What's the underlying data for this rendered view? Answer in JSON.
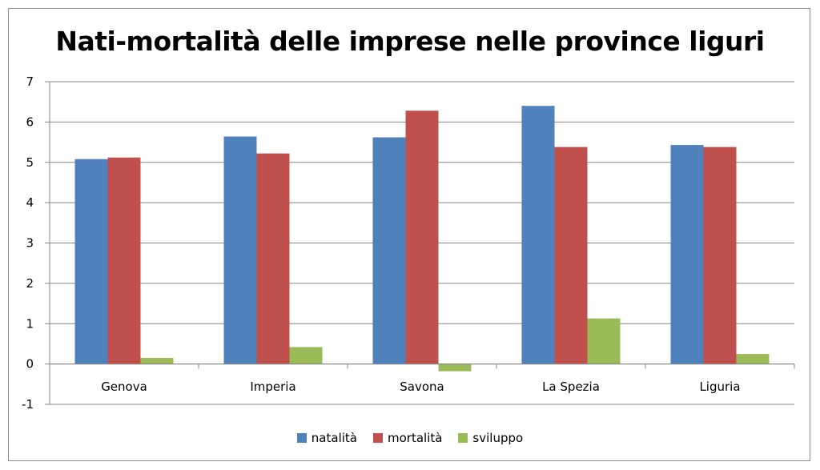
{
  "chart_data": {
    "type": "bar",
    "title": "Nati-mortalità delle imprese nelle province liguri",
    "categories": [
      "Genova",
      "Imperia",
      "Savona",
      "La Spezia",
      "Liguria"
    ],
    "series": [
      {
        "name": "natalità",
        "color": "#4f81bd",
        "values": [
          5.08,
          5.64,
          5.62,
          6.4,
          5.43
        ]
      },
      {
        "name": "mortalità",
        "color": "#c0504d",
        "values": [
          5.12,
          5.22,
          6.28,
          5.38,
          5.38
        ]
      },
      {
        "name": "sviluppo",
        "color": "#9bbb59",
        "values": [
          0.15,
          0.42,
          -0.18,
          1.13,
          0.25
        ]
      }
    ],
    "ylim": [
      -1,
      7
    ],
    "yticks": [
      "-1",
      "0",
      "1",
      "2",
      "3",
      "4",
      "5",
      "6",
      "7"
    ],
    "grid": true,
    "legend_position": "bottom"
  }
}
